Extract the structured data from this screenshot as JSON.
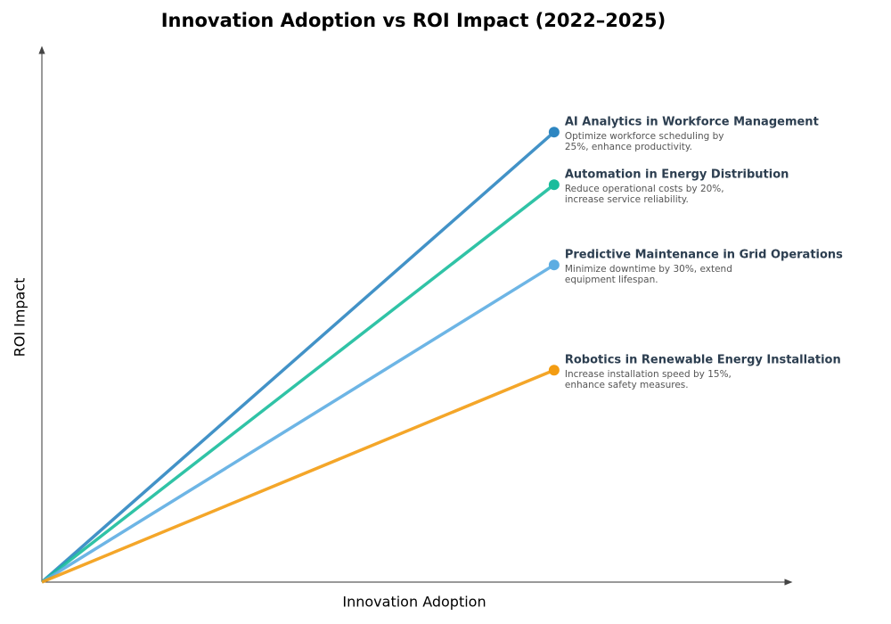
{
  "chart_data": {
    "type": "line",
    "title": "Innovation Adoption vs ROI Impact (2022–2025)",
    "x_label": "Innovation Adoption",
    "y_label": "ROI Impact",
    "xlim": [
      0,
      100
    ],
    "ylim": [
      0,
      100
    ],
    "x": [
      0,
      68.6
    ],
    "series": [
      {
        "name": "AI Analytics in Workforce Management",
        "color": "#2e86c1",
        "values": [
          0,
          84.7
        ],
        "description": [
          "Optimize workforce scheduling by",
          "25%, enhance productivity."
        ]
      },
      {
        "name": "Automation in Energy Distribution",
        "color": "#1abc9c",
        "values": [
          0,
          74.8
        ],
        "description": [
          "Reduce operational costs by 20%,",
          "increase service reliability."
        ]
      },
      {
        "name": "Predictive Maintenance in Grid Operations",
        "color": "#5dade2",
        "values": [
          0,
          59.7
        ],
        "description": [
          "Minimize downtime by 30%, extend",
          "equipment lifespan."
        ]
      },
      {
        "name": "Robotics in Renewable Energy Installation",
        "color": "#f39c12",
        "values": [
          0,
          39.9
        ],
        "description": [
          "Increase installation speed by 15%,",
          "enhance safety measures."
        ]
      }
    ]
  }
}
